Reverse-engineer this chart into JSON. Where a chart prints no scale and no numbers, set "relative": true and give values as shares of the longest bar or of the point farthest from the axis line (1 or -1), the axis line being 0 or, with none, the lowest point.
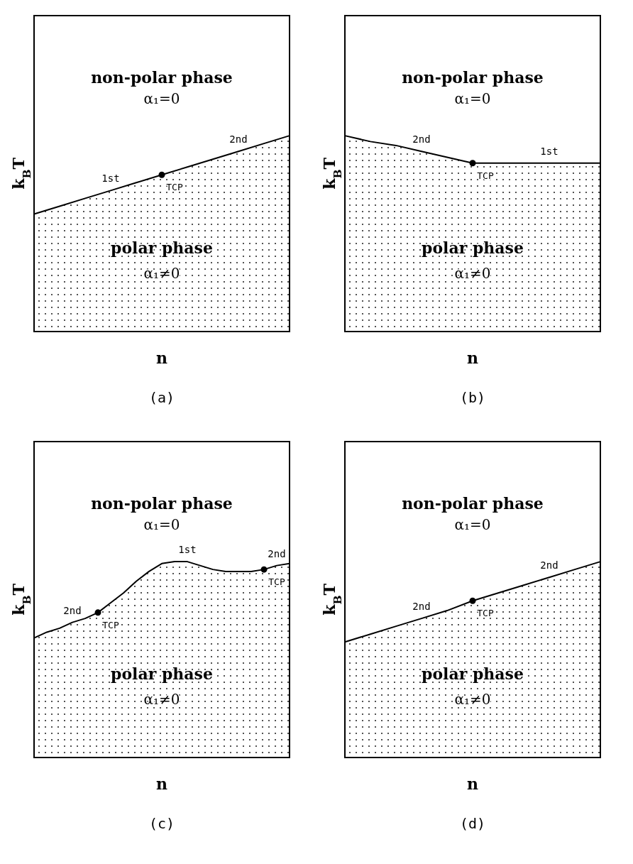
{
  "chart_data": [
    {
      "type": "area",
      "relative": true,
      "title": "(a)",
      "xlabel": "n",
      "ylabel": "k$_{B}$T",
      "categories": [
        null,
        null,
        null,
        null,
        null,
        null,
        null,
        null,
        null,
        null,
        null
      ],
      "series": [
        {
          "name": "1st",
          "color": "#000000",
          "values": [
            0.6,
            0.64,
            0.68,
            0.72,
            0.76,
            0.8,
            null,
            null,
            null,
            null,
            null
          ]
        },
        {
          "name": "2nd",
          "color": "#000000",
          "values": [
            null,
            null,
            null,
            null,
            null,
            0.8,
            0.84,
            0.88,
            0.92,
            0.96,
            1.0
          ]
        }
      ],
      "annotations": [
        "non-polar phase",
        "α₁=0",
        "polar phase",
        "α₁≠0",
        "TCP"
      ]
    },
    {
      "type": "area",
      "relative": true,
      "title": "(b)",
      "xlabel": "n",
      "ylabel": "k$_{B}$T",
      "categories": [
        null,
        null,
        null,
        null,
        null,
        null,
        null,
        null,
        null,
        null,
        null
      ],
      "series": [
        {
          "name": "2nd",
          "color": "#000000",
          "values": [
            1.0,
            0.97,
            0.95,
            0.92,
            0.89,
            0.86,
            null,
            null,
            null,
            null,
            null
          ]
        },
        {
          "name": "1st",
          "color": "#000000",
          "values": [
            null,
            null,
            null,
            null,
            null,
            0.86,
            0.86,
            0.86,
            0.86,
            0.86,
            0.86
          ]
        }
      ],
      "annotations": [
        "non-polar phase",
        "α₁=0",
        "polar phase",
        "α₁≠0",
        "TCP"
      ]
    },
    {
      "type": "area",
      "relative": true,
      "title": "(c)",
      "xlabel": "n",
      "ylabel": "k$_{B}$T",
      "categories": [
        null,
        null,
        null,
        null,
        null,
        null,
        null,
        null,
        null,
        null,
        null,
        null,
        null,
        null,
        null,
        null,
        null,
        null,
        null,
        null,
        null
      ],
      "series": [
        {
          "name": "2nd",
          "color": "#000000",
          "values": [
            0.61,
            0.64,
            0.66,
            0.69,
            0.71,
            0.74,
            null,
            null,
            null,
            null,
            null,
            null,
            null,
            null,
            null,
            null,
            null,
            null,
            null,
            null,
            null
          ]
        },
        {
          "name": "1st",
          "color": "#000000",
          "values": [
            null,
            null,
            null,
            null,
            null,
            0.74,
            0.79,
            0.84,
            0.9,
            0.95,
            0.99,
            1.0,
            1.0,
            0.98,
            0.96,
            0.95,
            0.95,
            0.95,
            0.96,
            null,
            null
          ]
        },
        {
          "name": "2nd",
          "color": "#000000",
          "values": [
            null,
            null,
            null,
            null,
            null,
            null,
            null,
            null,
            null,
            null,
            null,
            null,
            null,
            null,
            null,
            null,
            null,
            null,
            0.96,
            0.98,
            0.99
          ]
        }
      ],
      "annotations": [
        "non-polar phase",
        "α₁=0",
        "polar phase",
        "α₁≠0",
        "TCP",
        "TCP"
      ]
    },
    {
      "type": "area",
      "relative": true,
      "title": "(d)",
      "xlabel": "n",
      "ylabel": "k$_{B}$T",
      "categories": [
        null,
        null,
        null,
        null,
        null,
        null,
        null,
        null,
        null,
        null,
        null
      ],
      "series": [
        {
          "name": "2nd",
          "color": "#000000",
          "values": [
            0.59,
            0.63,
            0.67,
            0.71,
            0.75,
            0.8,
            null,
            null,
            null,
            null,
            null
          ]
        },
        {
          "name": "2nd",
          "color": "#000000",
          "values": [
            null,
            null,
            null,
            null,
            null,
            0.8,
            0.84,
            0.88,
            0.92,
            0.96,
            1.0
          ]
        }
      ],
      "annotations": [
        "non-polar phase",
        "α₁=0",
        "polar phase",
        "α₁≠0",
        "TCP"
      ]
    }
  ]
}
